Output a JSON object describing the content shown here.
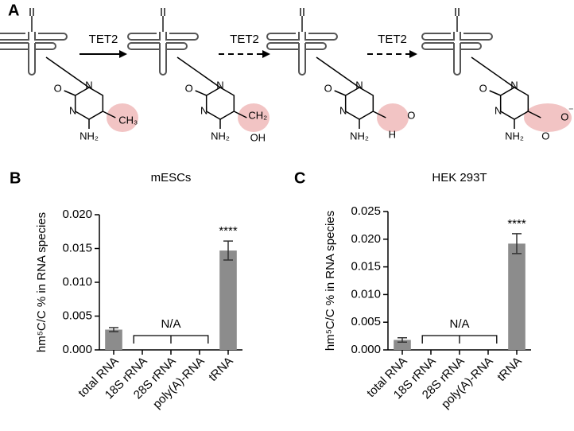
{
  "panel_a": {
    "letter": "A",
    "arrows": [
      "TET2",
      "TET2",
      "TET2"
    ],
    "molecules": [
      {
        "o": "O",
        "n1": "N",
        "n3": "N",
        "amine": "NH₂",
        "groups": [
          "CH₃"
        ]
      },
      {
        "o": "O",
        "n1": "N",
        "n3": "N",
        "amine": "NH₂",
        "groups": [
          "CH₂",
          "OH"
        ]
      },
      {
        "o": "O",
        "n1": "N",
        "n3": "N",
        "amine": "NH₂",
        "groups": [
          "O",
          "H"
        ]
      },
      {
        "o": "O",
        "n1": "N",
        "n3": "N",
        "amine": "NH₂",
        "groups": [
          "O",
          "O",
          "⁻"
        ]
      }
    ]
  },
  "chart_data": [
    {
      "type": "bar",
      "letter": "B",
      "title": "mESCs",
      "y_label": "hm⁵C/C % in RNA species",
      "categories": [
        "total RNA",
        "18S rRNA",
        "28S rRNA",
        "poly(A)-RNA",
        "tRNA"
      ],
      "values": [
        0.003,
        null,
        null,
        null,
        0.0147
      ],
      "errors": [
        0.0003,
        null,
        null,
        null,
        0.0014
      ],
      "color": "#8c8c8c",
      "annotations": {
        "na": "N/A",
        "significance": "****"
      },
      "ylim": [
        0,
        0.02
      ],
      "yticks": [
        {
          "value": 0,
          "label": "0.000"
        },
        {
          "value": 0.005,
          "label": "0.005"
        },
        {
          "value": 0.01,
          "label": "0.010"
        },
        {
          "value": 0.015,
          "label": "0.015"
        },
        {
          "value": 0.02,
          "label": "0.020"
        }
      ]
    },
    {
      "type": "bar",
      "letter": "C",
      "title": "HEK 293T",
      "y_label": "hm⁵C/C % in RNA species",
      "categories": [
        "total RNA",
        "18S rRNA",
        "28S rRNA",
        "poly(A)-RNA",
        "tRNA"
      ],
      "values": [
        0.0018,
        null,
        null,
        null,
        0.0192
      ],
      "errors": [
        0.0004,
        null,
        null,
        null,
        0.0018
      ],
      "color": "#8c8c8c",
      "annotations": {
        "na": "N/A",
        "significance": "****"
      },
      "ylim": [
        0,
        0.025
      ],
      "yticks": [
        {
          "value": 0,
          "label": "0.000"
        },
        {
          "value": 0.005,
          "label": "0.005"
        },
        {
          "value": 0.01,
          "label": "0.010"
        },
        {
          "value": 0.015,
          "label": "0.015"
        },
        {
          "value": 0.02,
          "label": "0.020"
        },
        {
          "value": 0.025,
          "label": "0.025"
        }
      ]
    }
  ]
}
